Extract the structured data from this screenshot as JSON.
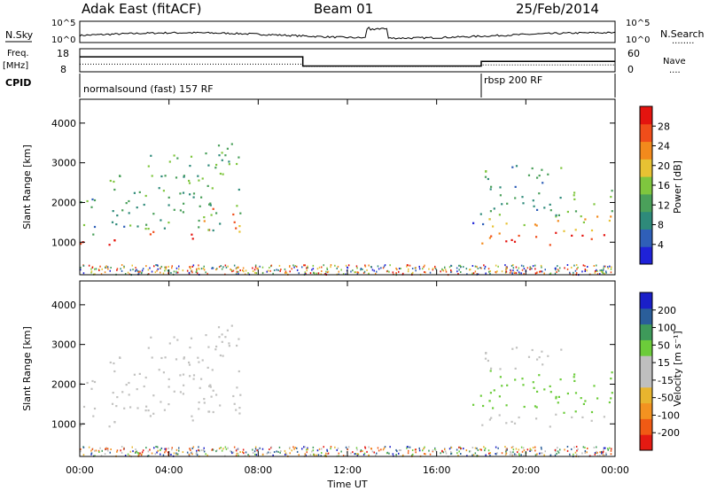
{
  "header": {
    "station": "Adak East (fitACF)",
    "beam": "Beam 01",
    "date": "25/Feb/2014"
  },
  "labels": {
    "nsky": "N.Sky",
    "nsearch": "N.Search",
    "nsearch_legend": "........",
    "freq": "Freq.",
    "freq_unit": "[MHz]",
    "nave": "Nave",
    "nave_legend": "....",
    "cpid": "CPID",
    "cpid1": "normalsound (fast) 157 RF",
    "cpid2": "rbsp 200 RF",
    "slant": "Slant Range [km]",
    "time": "Time UT",
    "power_label": "Power [dB]",
    "velocity_label": "Velocity [m s⁻¹]",
    "noise_left_top": "10^5",
    "noise_left_bot": "10^0",
    "noise_right_top": "10^5",
    "noise_right_bot": "10^0",
    "freq_top": "18",
    "freq_bot": "8",
    "nave_top": "60",
    "nave_bot": "0"
  },
  "colors": {
    "power": [
      "#1f22d8",
      "#2f5fb8",
      "#2e8a7a",
      "#4aa05a",
      "#7fc63e",
      "#e7c233",
      "#f38a1c",
      "#f04d1a",
      "#e4140f"
    ],
    "velocity": [
      "#e41a12",
      "#f05a14",
      "#f39220",
      "#e8b52e",
      "#bfbfbf",
      "#bfbfbf",
      "#6ccc3a",
      "#3e9a5a",
      "#2a5e9a",
      "#1a1fc8"
    ],
    "scatter_gray": "#c2c2c0"
  },
  "chart_data": {
    "type": "heatmap",
    "x_ticks": [
      "00:00",
      "04:00",
      "08:00",
      "12:00",
      "16:00",
      "20:00",
      "00:00"
    ],
    "x_range_hours": [
      0,
      24
    ],
    "y_ticks": [
      "1000",
      "2000",
      "3000",
      "4000"
    ],
    "y_range_km": [
      180,
      4600
    ],
    "power_ticks": [
      "4",
      "8",
      "12",
      "16",
      "20",
      "24",
      "28"
    ],
    "power_range_db": [
      0,
      32
    ],
    "velocity_ticks": [
      "-200",
      "-100",
      "-50",
      "-15",
      "15",
      "50",
      "100",
      "200"
    ],
    "cpid_change_hour": 18.0,
    "freq_steps": [
      {
        "from": 0,
        "to": 10,
        "mhz": 14.5
      },
      {
        "from": 10,
        "to": 18,
        "mhz": 10.5
      },
      {
        "from": 18,
        "to": 24,
        "mhz": 12.5
      }
    ],
    "nave_steps": [
      {
        "from": 0,
        "to": 10,
        "value": 20
      },
      {
        "from": 10,
        "to": 18,
        "value": 14
      },
      {
        "from": 18,
        "to": 24,
        "value": 18
      }
    ],
    "echo_bands": [
      {
        "t0": 0.0,
        "t1": 0.9,
        "r0": 950,
        "r1": 1200,
        "p": 28
      },
      {
        "t0": 0.0,
        "t1": 0.9,
        "r0": 1200,
        "r1": 2400,
        "p": 10
      },
      {
        "t0": 1.1,
        "t1": 3.0,
        "r0": 950,
        "r1": 1150,
        "p": 28
      },
      {
        "t0": 3.0,
        "t1": 5.5,
        "r0": 1050,
        "r1": 1300,
        "p": 26
      },
      {
        "t0": 5.5,
        "t1": 7.2,
        "r0": 1250,
        "r1": 1900,
        "p": 24
      },
      {
        "t0": 1.2,
        "t1": 7.2,
        "r0": 1300,
        "r1": 3500,
        "p": 12
      },
      {
        "t0": 17.5,
        "t1": 18.5,
        "r0": 1400,
        "r1": 2000,
        "p": 6
      },
      {
        "t0": 18.0,
        "t1": 24.0,
        "r0": 950,
        "r1": 1300,
        "p": 28
      },
      {
        "t0": 18.0,
        "t1": 24.0,
        "r0": 1300,
        "r1": 1700,
        "p": 20
      },
      {
        "t0": 18.2,
        "t1": 24.0,
        "r0": 1700,
        "r1": 2400,
        "p": 12
      },
      {
        "t0": 18.0,
        "t1": 22.0,
        "r0": 2400,
        "r1": 3000,
        "p": 10
      }
    ]
  }
}
